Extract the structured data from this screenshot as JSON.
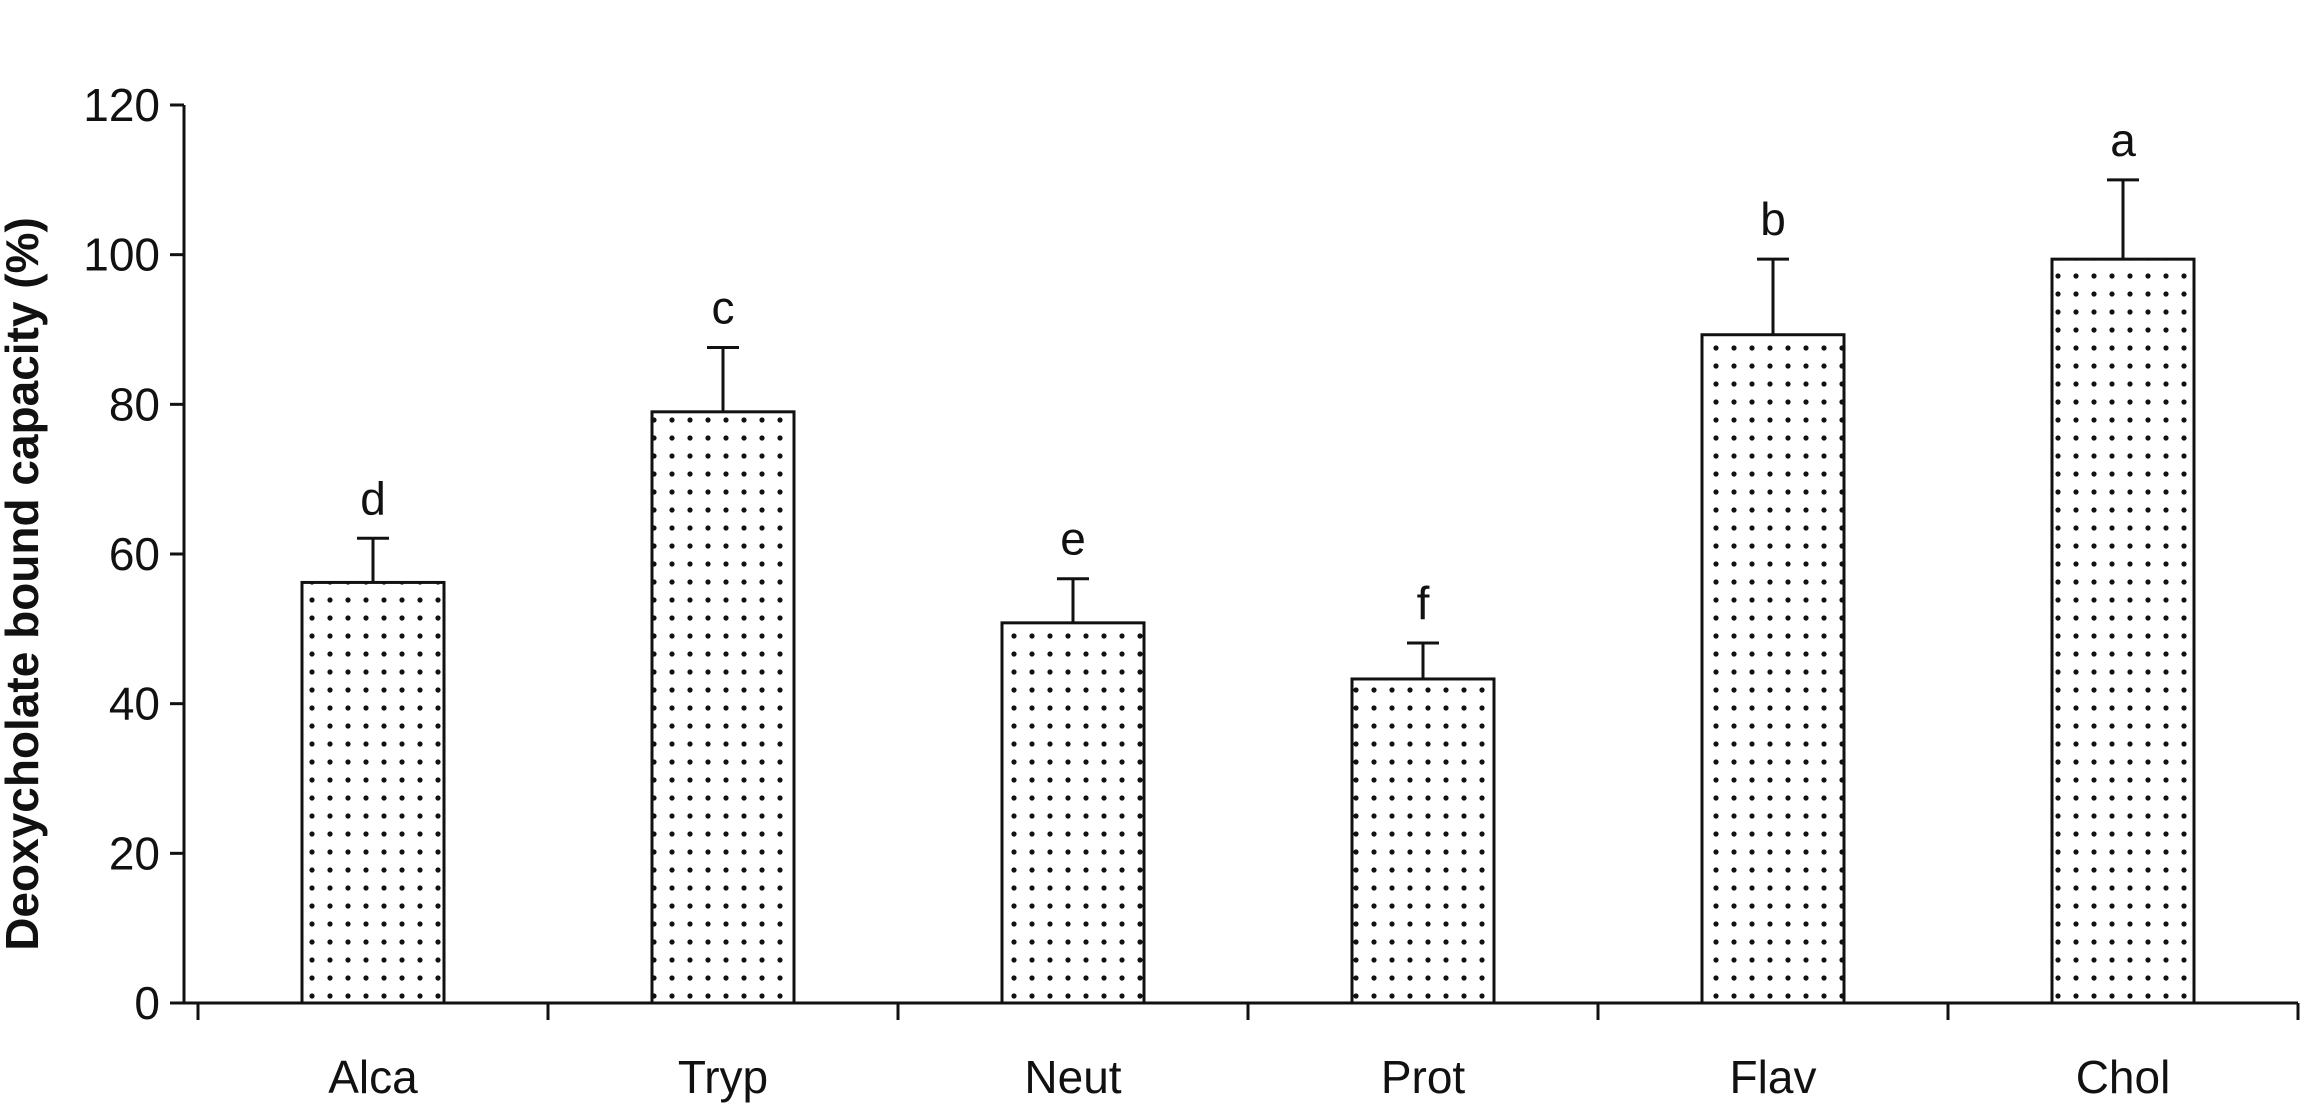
{
  "chart_data": {
    "type": "bar",
    "title": "",
    "xlabel": "",
    "ylabel": "Deoxycholate bound capacity (%)",
    "ylim": [
      0,
      120
    ],
    "yticks": [
      0,
      20,
      40,
      60,
      80,
      100,
      120
    ],
    "yticks_text": [
      "0",
      "20",
      "40",
      "60",
      "80",
      "100",
      "120"
    ],
    "categories": [
      "Alca",
      "Tryp",
      "Neut",
      "Prot",
      "Flav",
      "Chol"
    ],
    "values": [
      56.2,
      79.0,
      50.8,
      43.3,
      89.3,
      99.4
    ],
    "errors": [
      5.9,
      8.6,
      5.9,
      4.8,
      10.1,
      10.6
    ],
    "significance": [
      "d",
      "c",
      "e",
      "f",
      "b",
      "a"
    ],
    "bar_pattern": "dotted",
    "colors": {
      "bar_fill": "#ffffff",
      "bar_stroke": "#111111",
      "dot": "#111111",
      "axis": "#111111"
    }
  }
}
